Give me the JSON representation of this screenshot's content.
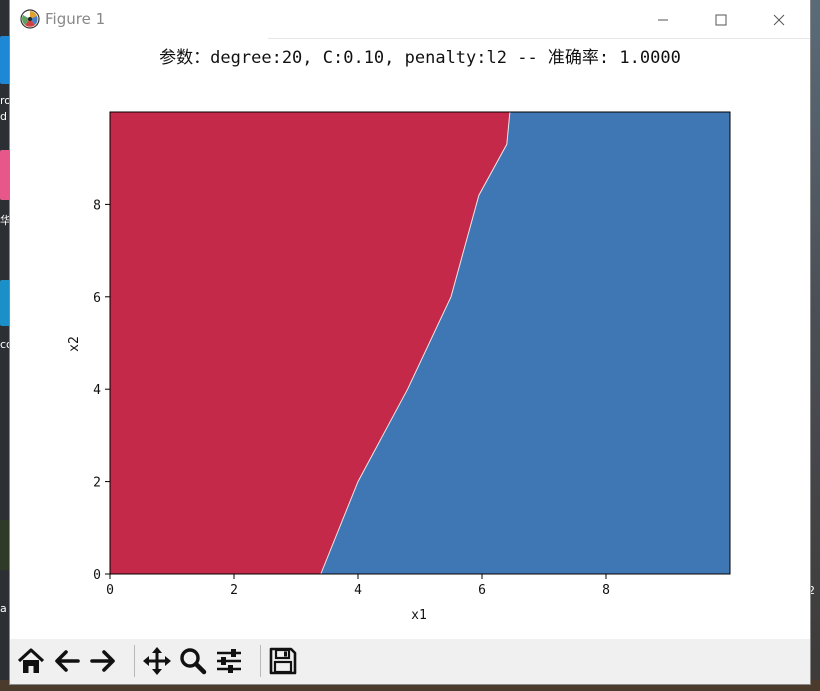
{
  "window": {
    "title": "Figure 1",
    "minimize_label": "—",
    "maximize_label": "☐",
    "close_label": "✕"
  },
  "figure": {
    "title": "参数：degree:20, C:0.10, penalty:l2 -- 准确率: 1.0000",
    "xlabel": "x1",
    "ylabel": "x2"
  },
  "chart_data": {
    "type": "heatmap",
    "title": "参数：degree:20, C:0.10, penalty:l2 -- 准确率: 1.0000",
    "xlabel": "x1",
    "ylabel": "x2",
    "xlim": [
      0,
      10
    ],
    "ylim": [
      0,
      10
    ],
    "xticks": [
      "0",
      "2",
      "4",
      "6",
      "8"
    ],
    "yticks": [
      "0",
      "2",
      "4",
      "6",
      "8"
    ],
    "grid": false,
    "regions": [
      {
        "class": 0,
        "color": "#c4294a",
        "side": "left"
      },
      {
        "class": 1,
        "color": "#3f77b5",
        "side": "right"
      }
    ],
    "decision_boundary": [
      {
        "x": 3.4,
        "y": 0.0
      },
      {
        "x": 4.0,
        "y": 2.0
      },
      {
        "x": 4.8,
        "y": 4.0
      },
      {
        "x": 5.5,
        "y": 6.0
      },
      {
        "x": 5.95,
        "y": 8.2
      },
      {
        "x": 6.4,
        "y": 9.3
      },
      {
        "x": 6.45,
        "y": 10.0
      }
    ]
  },
  "toolbar": {
    "buttons": [
      {
        "name": "home-button",
        "icon": "home-icon"
      },
      {
        "name": "back-button",
        "icon": "arrow-left-icon"
      },
      {
        "name": "forward-button",
        "icon": "arrow-right-icon"
      },
      {
        "name": "pan-button",
        "icon": "move-icon"
      },
      {
        "name": "zoom-button",
        "icon": "magnifier-icon"
      },
      {
        "name": "configure-subplots-button",
        "icon": "sliders-icon"
      },
      {
        "name": "save-button",
        "icon": "floppy-disk-icon"
      }
    ]
  },
  "desktop": {
    "left_labels": [
      "ro",
      "d",
      "华",
      "co",
      "a"
    ],
    "right_labels": [
      "2"
    ]
  }
}
